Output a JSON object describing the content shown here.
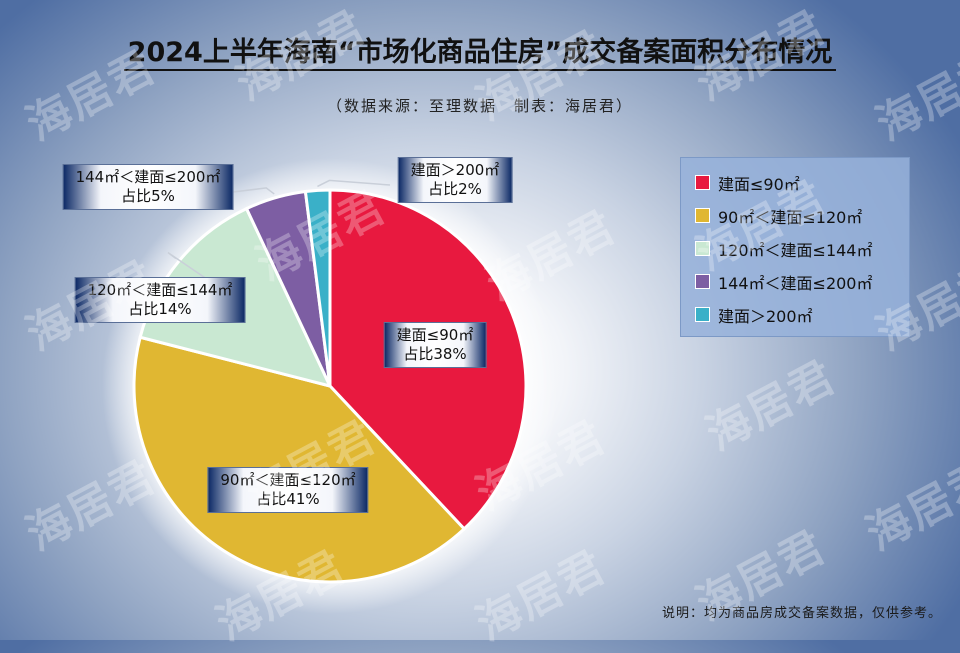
{
  "title": "2024上半年海南“市场化商品住房”成交备案面积分布情况",
  "subtitle": "（数据来源：至理数据　制表：海居君）",
  "note": "说明：均为商品房成交备案数据，仅供参考。",
  "watermark": "海居君",
  "chart_data": {
    "type": "pie",
    "unit": "%",
    "slices": [
      {
        "label": "建面≤90㎡",
        "value": 38,
        "pct_text": "占比38%",
        "color": "#e8193f"
      },
      {
        "label": "90㎡＜建面≤120㎡",
        "value": 41,
        "pct_text": "占比41%",
        "color": "#e0b732"
      },
      {
        "label": "120㎡＜建面≤144㎡",
        "value": 14,
        "pct_text": "占比14%",
        "color": "#c9e8d2"
      },
      {
        "label": "144㎡＜建面≤200㎡",
        "value": 5,
        "pct_text": "占比5%",
        "color": "#7d5ea3"
      },
      {
        "label": "建面＞200㎡",
        "value": 2,
        "pct_text": "占比2%",
        "color": "#3ab0c8"
      }
    ],
    "legend_placement": "right"
  }
}
